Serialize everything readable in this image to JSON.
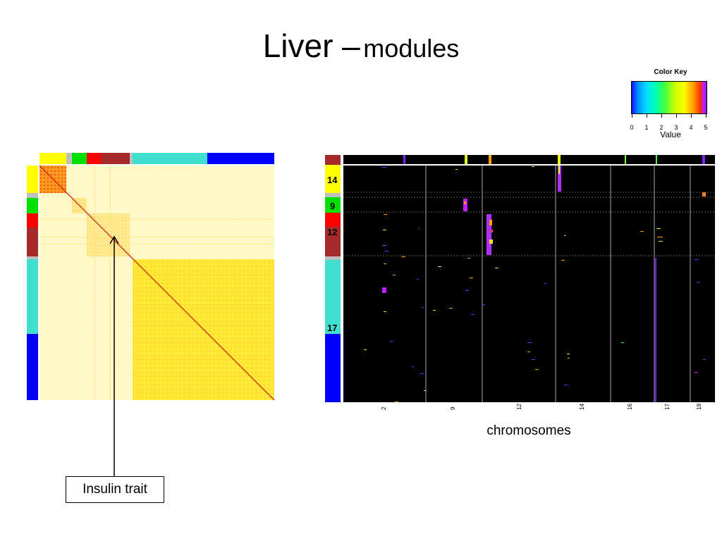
{
  "slide": {
    "title_main": "Liver –",
    "title_sub": "modules",
    "insulin_label": "Insulin trait",
    "xaxis_caption": "chromosomes"
  },
  "colors": {
    "yellow": "#ffff00",
    "green": "#00e000",
    "red": "#ff0000",
    "brown": "#a52a2a",
    "turquoise": "#40e0d0",
    "blue": "#0000ff",
    "grey": "#bebebe"
  },
  "chart_data": [
    {
      "type": "heatmap",
      "title": "",
      "description_modules_order": [
        "yellow",
        "grey",
        "green",
        "red",
        "brown",
        "turquoise",
        "blue"
      ],
      "module_fractions": [
        0.12,
        0.02,
        0.06,
        0.06,
        0.12,
        0.3,
        0.32
      ]
    },
    {
      "type": "heatmap",
      "title": "",
      "xlabel": "chromosomes",
      "chromosome_ticks": [
        "2",
        "9",
        "12",
        "14",
        "16",
        "17",
        "19"
      ],
      "module_row_labels": [
        {
          "label": "14",
          "module": "yellow"
        },
        {
          "label": "9",
          "module": "green"
        },
        {
          "label": "12",
          "module": "red"
        },
        {
          "label": "17",
          "module": "turquoise"
        }
      ],
      "color_key": {
        "title": "Color Key",
        "label": "Value",
        "ticks": [
          "0",
          "1",
          "2",
          "3",
          "4",
          "5"
        ]
      }
    }
  ]
}
